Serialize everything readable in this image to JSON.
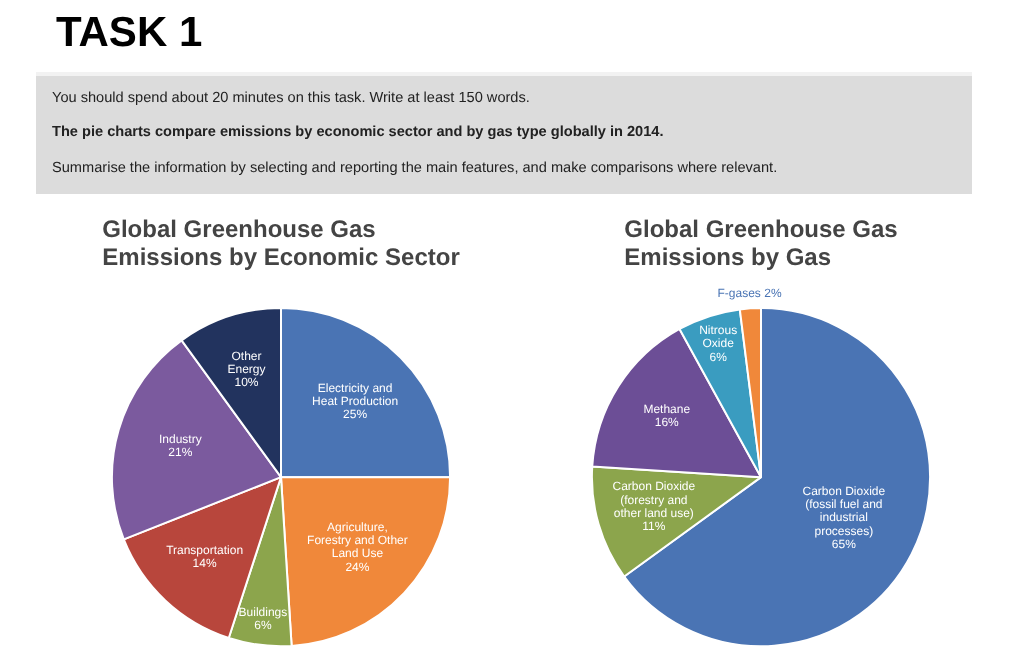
{
  "chart_data": [
    {
      "type": "pie",
      "title": "Global Greenhouse Gas Emissions by Economic Sector",
      "annotations": [
        "TASK 1",
        "You should spend about 20 minutes on this task. Write at least 150 words.",
        "The pie charts compare emissions by economic sector and by gas type globally in 2014.",
        "Summarise the information by selecting and reporting the main features, and make comparisons where relevant."
      ],
      "categories": [
        "Electricity and Heat Production",
        "Agriculture, Forestry and Other Land Use",
        "Buildings",
        "Transportation",
        "Industry",
        "Other Energy"
      ],
      "values": [
        25,
        24,
        6,
        14,
        21,
        10
      ],
      "value_labels": [
        "25%",
        "24%",
        "6%",
        "14%",
        "21%",
        "10%"
      ],
      "colors": [
        "#4a74b4",
        "#f0883a",
        "#8ca54c",
        "#b8463c",
        "#7b5a9e",
        "#22335e"
      ]
    },
    {
      "type": "pie",
      "title": "Global Greenhouse Gas Emissions by Gas",
      "categories": [
        "Carbon Dioxide (fossil fuel and industrial processes)",
        "Carbon Dioxide (forestry and other land use)",
        "Methane",
        "Nitrous Oxide",
        "F-gases"
      ],
      "values": [
        65,
        11,
        16,
        6,
        2
      ],
      "value_labels": [
        "65%",
        "11%",
        "16%",
        "6%",
        "2%"
      ],
      "colors": [
        "#4a74b4",
        "#8ca54c",
        "#6c4e96",
        "#3a9cc0",
        "#f0883a"
      ]
    }
  ]
}
